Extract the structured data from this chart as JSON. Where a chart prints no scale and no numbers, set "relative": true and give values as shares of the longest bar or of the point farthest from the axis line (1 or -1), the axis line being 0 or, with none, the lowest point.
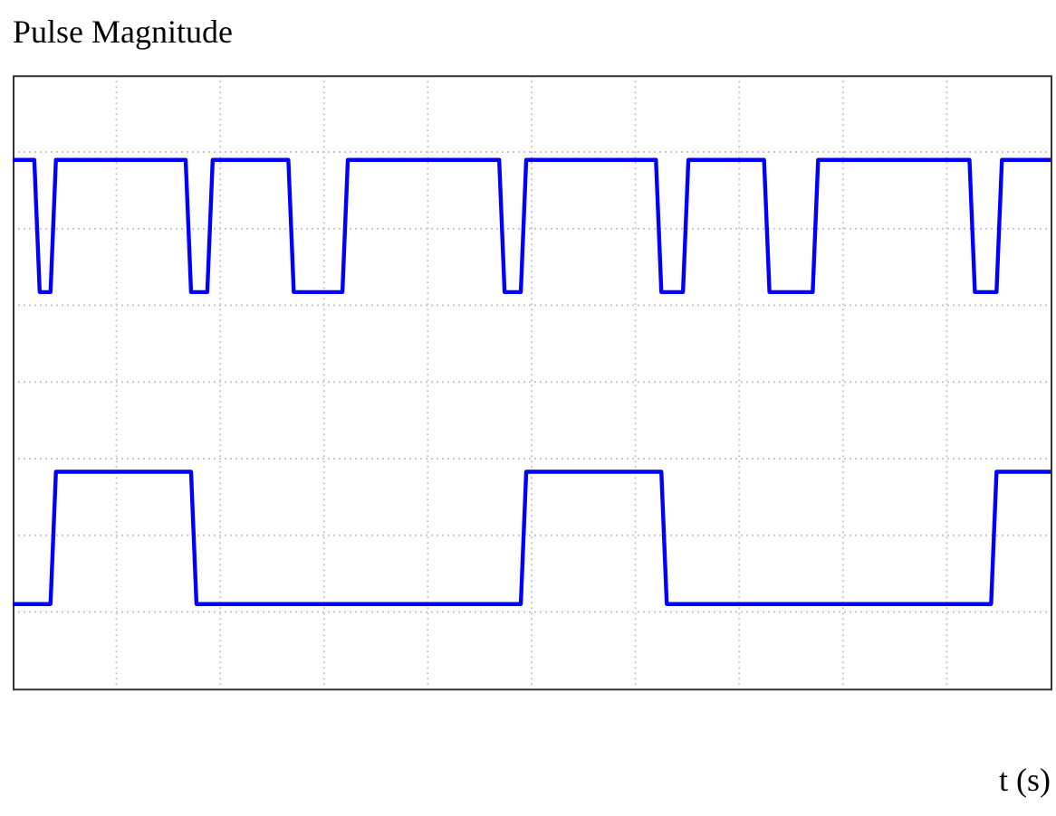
{
  "chart_data": {
    "type": "line",
    "title": "Pulse Magnitude",
    "xlabel": "t (s)",
    "relative": true,
    "grid": true,
    "legend": false,
    "marker": "none",
    "line_style": "solid",
    "categories": [
      null,
      null,
      null,
      null,
      null,
      null,
      null,
      null,
      null,
      null,
      null,
      null,
      null,
      null,
      null,
      null,
      null,
      null,
      null,
      null,
      null,
      null,
      null,
      null,
      null,
      null,
      null,
      null,
      null,
      null,
      null,
      null,
      null,
      null,
      null,
      null,
      null,
      null,
      null,
      null,
      null,
      null,
      null,
      null,
      null,
      null,
      null,
      null,
      null,
      null,
      null,
      null,
      null,
      null,
      null,
      null,
      null,
      null,
      null,
      null,
      null,
      null,
      null,
      null,
      null,
      null,
      null,
      null,
      null,
      null,
      null,
      null,
      null,
      null,
      null,
      null,
      null,
      null,
      null,
      null,
      null,
      null,
      null,
      null,
      null,
      null,
      null,
      null,
      null,
      null,
      null,
      null,
      null,
      null,
      null,
      null,
      null,
      null,
      null,
      null,
      null,
      null,
      null,
      null,
      null,
      null,
      null,
      null,
      null,
      null,
      null,
      null,
      null,
      null,
      null,
      null,
      null,
      null,
      null,
      null,
      null,
      null,
      null,
      null,
      null,
      null,
      null,
      null,
      null,
      null,
      null,
      null,
      null,
      null,
      null,
      null,
      null,
      null,
      null,
      null,
      null,
      null,
      null,
      null,
      null,
      null,
      null,
      null,
      null,
      null,
      null,
      null,
      null,
      null,
      null,
      null,
      null,
      null,
      null,
      null,
      null,
      null,
      null,
      null,
      null,
      null,
      null,
      null,
      null,
      null,
      null,
      null,
      null,
      null,
      null,
      null,
      null,
      null,
      null,
      null,
      null,
      null,
      null,
      null,
      null,
      null,
      null,
      null,
      null,
      null,
      null,
      null,
      null
    ],
    "series": [
      {
        "color": "#0000ff",
        "values": [
          1,
          1,
          1,
          1,
          1,
          0.75,
          0.75,
          0.75,
          1,
          1,
          1,
          1,
          1,
          1,
          1,
          1,
          1,
          1,
          1,
          1,
          1,
          1,
          1,
          1,
          1,
          1,
          1,
          1,
          1,
          1,
          1,
          1,
          1,
          0.75,
          0.75,
          0.75,
          0.75,
          1,
          1,
          1,
          1,
          1,
          1,
          1,
          1,
          1,
          1,
          1,
          1,
          1,
          1,
          1,
          0.75,
          0.75,
          0.75,
          0.75,
          0.75,
          0.75,
          0.75,
          0.75,
          0.75,
          0.75,
          1,
          1,
          1,
          1,
          1,
          1,
          1,
          1,
          1,
          1,
          1,
          1,
          1,
          1,
          1,
          1,
          1,
          1,
          1,
          1,
          1,
          1,
          1,
          1,
          1,
          1,
          1,
          1,
          1,
          0.75,
          0.75,
          0.75,
          0.75,
          1,
          1,
          1,
          1,
          1,
          1,
          1,
          1,
          1,
          1,
          1,
          1,
          1,
          1,
          1,
          1,
          1,
          1,
          1,
          1,
          1,
          1,
          1,
          1,
          1,
          0.75,
          0.75,
          0.75,
          0.75,
          0.75,
          1,
          1,
          1,
          1,
          1,
          1,
          1,
          1,
          1,
          1,
          1,
          1,
          1,
          1,
          1,
          0.75,
          0.75,
          0.75,
          0.75,
          0.75,
          0.75,
          0.75,
          0.75,
          0.75,
          1,
          1,
          1,
          1,
          1,
          1,
          1,
          1,
          1,
          1,
          1,
          1,
          1,
          1,
          1,
          1,
          1,
          1,
          1,
          1,
          1,
          1,
          1,
          1,
          1,
          1,
          1,
          1,
          1,
          0.75,
          0.75,
          0.75,
          0.75,
          0.75,
          1,
          1,
          1,
          1,
          1,
          1,
          1,
          1,
          1,
          1
        ]
      },
      {
        "color": "#0000ff",
        "values": [
          0.16,
          0.16,
          0.16,
          0.16,
          0.16,
          0.16,
          0.16,
          0.16,
          0.41,
          0.41,
          0.41,
          0.41,
          0.41,
          0.41,
          0.41,
          0.41,
          0.41,
          0.41,
          0.41,
          0.41,
          0.41,
          0.41,
          0.41,
          0.41,
          0.41,
          0.41,
          0.41,
          0.41,
          0.41,
          0.41,
          0.41,
          0.41,
          0.41,
          0.41,
          0.16,
          0.16,
          0.16,
          0.16,
          0.16,
          0.16,
          0.16,
          0.16,
          0.16,
          0.16,
          0.16,
          0.16,
          0.16,
          0.16,
          0.16,
          0.16,
          0.16,
          0.16,
          0.16,
          0.16,
          0.16,
          0.16,
          0.16,
          0.16,
          0.16,
          0.16,
          0.16,
          0.16,
          0.16,
          0.16,
          0.16,
          0.16,
          0.16,
          0.16,
          0.16,
          0.16,
          0.16,
          0.16,
          0.16,
          0.16,
          0.16,
          0.16,
          0.16,
          0.16,
          0.16,
          0.16,
          0.16,
          0.16,
          0.16,
          0.16,
          0.16,
          0.16,
          0.16,
          0.16,
          0.16,
          0.16,
          0.16,
          0.16,
          0.16,
          0.16,
          0.16,
          0.41,
          0.41,
          0.41,
          0.41,
          0.41,
          0.41,
          0.41,
          0.41,
          0.41,
          0.41,
          0.41,
          0.41,
          0.41,
          0.41,
          0.41,
          0.41,
          0.41,
          0.41,
          0.41,
          0.41,
          0.41,
          0.41,
          0.41,
          0.41,
          0.41,
          0.41,
          0.16,
          0.16,
          0.16,
          0.16,
          0.16,
          0.16,
          0.16,
          0.16,
          0.16,
          0.16,
          0.16,
          0.16,
          0.16,
          0.16,
          0.16,
          0.16,
          0.16,
          0.16,
          0.16,
          0.16,
          0.16,
          0.16,
          0.16,
          0.16,
          0.16,
          0.16,
          0.16,
          0.16,
          0.16,
          0.16,
          0.16,
          0.16,
          0.16,
          0.16,
          0.16,
          0.16,
          0.16,
          0.16,
          0.16,
          0.16,
          0.16,
          0.16,
          0.16,
          0.16,
          0.16,
          0.16,
          0.16,
          0.16,
          0.16,
          0.16,
          0.16,
          0.16,
          0.16,
          0.16,
          0.16,
          0.16,
          0.16,
          0.16,
          0.16,
          0.16,
          0.16,
          0.41,
          0.41,
          0.41,
          0.41,
          0.41,
          0.41,
          0.41,
          0.41,
          0.41,
          0.41,
          0.41
        ]
      }
    ]
  }
}
